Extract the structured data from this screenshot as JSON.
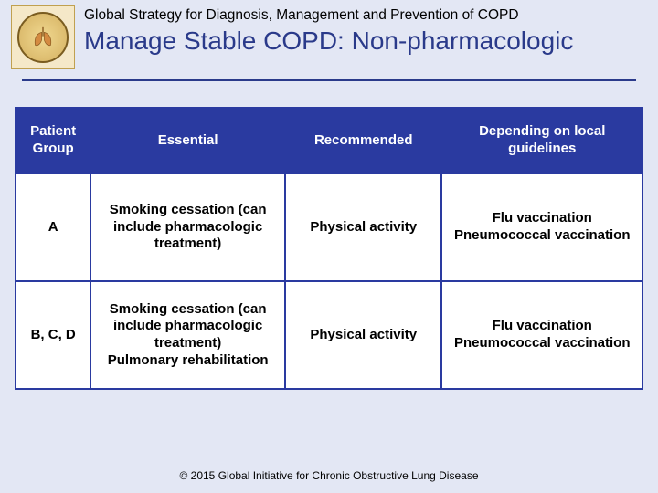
{
  "colors": {
    "background": "#e3e7f4",
    "title_text": "#2a3a8a",
    "subtitle_text": "#000000",
    "rule": "#2a3a8a",
    "table_header_bg": "#2a3aa0",
    "table_header_text": "#ffffff",
    "table_border": "#2a3aa0",
    "table_cell_text": "#000000",
    "footer_text": "#000000",
    "logo_border": "#c0a050",
    "logo_bg": "#f5e8c8"
  },
  "header": {
    "subtitle": "Global Strategy for Diagnosis, Management and Prevention of COPD",
    "title": "Manage Stable COPD:  Non-pharmacologic"
  },
  "table": {
    "columns": [
      {
        "key": "group",
        "label": "Patient Group",
        "width_pct": 12
      },
      {
        "key": "essential",
        "label": "Essential",
        "width_pct": 31
      },
      {
        "key": "recommended",
        "label": "Recommended",
        "width_pct": 25
      },
      {
        "key": "depending",
        "label": "Depending on local guidelines",
        "width_pct": 32
      }
    ],
    "rows": [
      {
        "group": "A",
        "essential": "Smoking cessation (can include pharmacologic treatment)",
        "recommended": "Physical activity",
        "depending": "Flu vaccination\nPneumococcal vaccination"
      },
      {
        "group": "B, C, D",
        "essential": "Smoking cessation (can include pharmacologic treatment)\nPulmonary rehabilitation",
        "recommended": "Physical activity",
        "depending": "Flu vaccination\nPneumococcal vaccination"
      }
    ]
  },
  "footer": "© 2015 Global Initiative for Chronic Obstructive Lung Disease",
  "typography": {
    "subtitle_fontsize": 15.5,
    "title_fontsize": 28,
    "cell_fontsize": 15,
    "footer_fontsize": 12
  }
}
